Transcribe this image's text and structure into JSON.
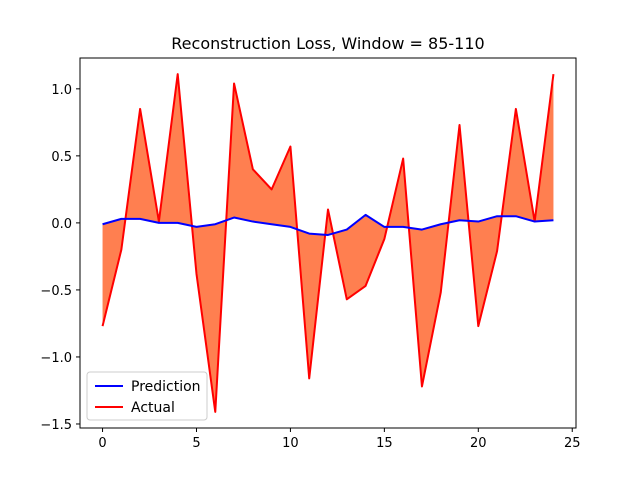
{
  "chart_data": {
    "type": "line",
    "title": "Reconstruction Loss, Window = 85-110",
    "xlabel": "",
    "ylabel": "",
    "xlim": [
      -1.2,
      25.2
    ],
    "ylim": [
      -1.53,
      1.23
    ],
    "x_ticks": [
      0,
      5,
      10,
      15,
      20,
      25
    ],
    "y_ticks": [
      -1.5,
      -1.0,
      -0.5,
      0.0,
      0.5,
      1.0
    ],
    "y_tick_labels": [
      "−1.5",
      "−1.0",
      "−0.5",
      "0.0",
      "0.5",
      "1.0"
    ],
    "x": [
      0,
      1,
      2,
      3,
      4,
      5,
      6,
      7,
      8,
      9,
      10,
      11,
      12,
      13,
      14,
      15,
      16,
      17,
      18,
      19,
      20,
      21,
      22,
      23,
      24
    ],
    "series": [
      {
        "name": "Prediction",
        "color": "#0000ff",
        "values": [
          -0.01,
          0.03,
          0.03,
          0.0,
          0.0,
          -0.03,
          -0.01,
          0.04,
          0.01,
          -0.01,
          -0.03,
          -0.08,
          -0.09,
          -0.05,
          0.06,
          -0.03,
          -0.03,
          -0.05,
          -0.01,
          0.02,
          0.01,
          0.05,
          0.05,
          0.01,
          0.02
        ]
      },
      {
        "name": "Actual",
        "color": "#ff0000",
        "values": [
          -0.77,
          -0.2,
          0.85,
          0.01,
          1.11,
          -0.38,
          -1.41,
          1.04,
          0.4,
          0.25,
          0.57,
          -1.16,
          0.1,
          -0.57,
          -0.47,
          -0.12,
          0.48,
          -1.22,
          -0.52,
          0.73,
          -0.77,
          -0.21,
          0.85,
          0.01,
          1.11
        ]
      }
    ],
    "fill_color": "#ff7f50",
    "legend_position": "lower-left",
    "grid": false
  }
}
